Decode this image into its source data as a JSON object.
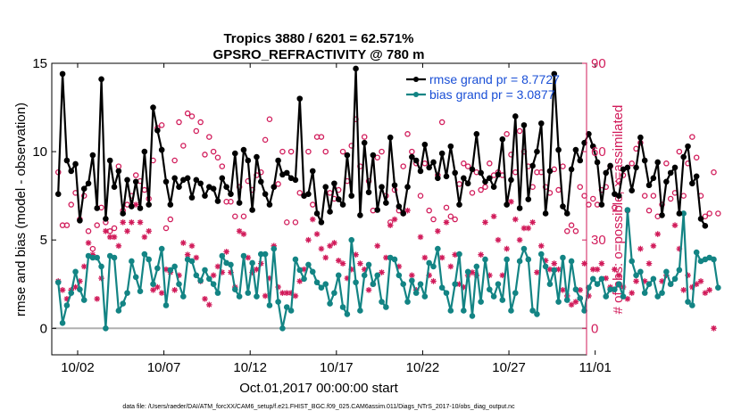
{
  "chart_data": {
    "type": "line",
    "title": "Tropics 3880 / 6201 = 62.571%",
    "subtitle": "GPSRO_REFRACTIVITY @ 780 m",
    "xlabel": "Oct.01,2017 00:00:00 start",
    "ylabel_left": "rmse and bias (model - observation)",
    "ylabel_right": "# of obs: o=possible; ×=assimilated",
    "footer": "data file: /Users/raeder/DAI/ATM_forcXX/CAM6_setup/f.e21.FHIST_BGC.f09_025.CAM6assim.011/Diags_NTrS_2017-10/obs_diag_output.nc",
    "xlim": [
      0.5,
      31.5
    ],
    "ylim_left": [
      -1.5,
      15
    ],
    "ylim_right": [
      -9,
      90
    ],
    "x_ticks": [
      2,
      7,
      12,
      17,
      22,
      27,
      32
    ],
    "x_tick_labels": [
      "10/02",
      "10/07",
      "10/12",
      "10/17",
      "10/22",
      "10/27",
      "11/01"
    ],
    "y_ticks_left": [
      0,
      5,
      10,
      15
    ],
    "y_ticks_right": [
      0,
      30,
      60,
      90
    ],
    "colors": {
      "rmse": "#000000",
      "bias": "#138484",
      "obs": "#d11b5a",
      "zero": "#b0b0b0",
      "legend_text": "#1a4fd6"
    },
    "legend": [
      {
        "name": "rmse grand pr = 8.7727",
        "key": "rmse"
      },
      {
        "name": "bias grand pr = 3.0877",
        "key": "bias"
      }
    ],
    "x_start": 0.875,
    "x_step": 0.25,
    "series": [
      {
        "name": "rmse",
        "axis": "left",
        "values": [
          7.6,
          14.4,
          9.5,
          8.9,
          9.3,
          6.1,
          7.9,
          8.2,
          9.8,
          6.8,
          14.1,
          6.2,
          9.5,
          8.0,
          8.9,
          6.5,
          8.4,
          6.9,
          8.3,
          6.8,
          10.0,
          7.0,
          12.5,
          11.2,
          10.1,
          8.3,
          7.0,
          8.5,
          8.0,
          8.4,
          8.5,
          7.4,
          8.4,
          8.2,
          7.5,
          8.0,
          7.9,
          7.2,
          8.5,
          8.0,
          7.6,
          9.9,
          7.1,
          10.1,
          9.5,
          6.7,
          9.7,
          8.3,
          7.6,
          7.0,
          8.0,
          9.5,
          8.7,
          8.8,
          8.5,
          8.4,
          13.0,
          7.5,
          7.6,
          8.9,
          6.5,
          6.0,
          8.0,
          6.6,
          8.2,
          7.3,
          7.0,
          9.8,
          7.5,
          14.7,
          6.4,
          10.5,
          7.7,
          9.8,
          6.7,
          8.0,
          7.1,
          10.8,
          8.1,
          6.9,
          6.5,
          8.0,
          9.7,
          9.5,
          8.9,
          10.4,
          9.1,
          9.4,
          8.5,
          9.9,
          8.6,
          10.3,
          8.8,
          7.0,
          8.5,
          8.2,
          9.0,
          11.0,
          8.8,
          8.3,
          8.5,
          8.0,
          8.7,
          10.7,
          7.0,
          8.4,
          12.0,
          6.8,
          11.5,
          7.3,
          9.2,
          10.0,
          11.6,
          6.5,
          8.9,
          14.4,
          10.1,
          6.9,
          6.5,
          9.0,
          10.1,
          9.5,
          10.5,
          11.0,
          10.3,
          9.4,
          7.0,
          8.8,
          9.2,
          7.6,
          7.5,
          9.0,
          9.1,
          7.8,
          9.1,
          10.8,
          9.5,
          8.1,
          8.5,
          9.4,
          6.4,
          8.3,
          8.8,
          9.1,
          6.5,
          9.7,
          10.3,
          8.2,
          8.6,
          6.2,
          5.8
        ]
      },
      {
        "name": "bias",
        "axis": "left",
        "values": [
          2.6,
          0.3,
          1.3,
          2.0,
          3.2,
          2.2,
          1.6,
          4.1,
          4.0,
          4.0,
          3.5,
          0.0,
          4.1,
          4.0,
          1.0,
          1.4,
          2.0,
          3.8,
          2.9,
          2.1,
          4.2,
          3.9,
          2.5,
          3.4,
          4.5,
          1.3,
          3.3,
          3.5,
          2.5,
          1.8,
          3.9,
          3.8,
          3.0,
          2.7,
          3.3,
          2.8,
          2.5,
          2.0,
          4.1,
          3.7,
          3.6,
          2.2,
          1.8,
          4.1,
          2.0,
          3.7,
          1.8,
          4.2,
          4.2,
          1.3,
          4.5,
          1.5,
          0.0,
          1.2,
          1.0,
          3.9,
          3.3,
          2.8,
          3.6,
          3.2,
          2.6,
          2.3,
          2.5,
          1.4,
          2.0,
          3.0,
          1.2,
          0.8,
          5.0,
          2.6,
          1.0,
          3.0,
          3.6,
          2.5,
          3.0,
          1.5,
          1.2,
          4.0,
          3.9,
          3.0,
          2.5,
          1.5,
          2.7,
          2.0,
          2.5,
          1.8,
          3.7,
          3.5,
          4.5,
          2.3,
          2.0,
          1.0,
          2.5,
          4.2,
          1.0,
          3.2,
          0.7,
          3.5,
          1.5,
          3.9,
          2.2,
          1.8,
          2.5,
          1.6,
          3.9,
          1.0,
          2.0,
          3.8,
          4.5,
          3.9,
          1.0,
          0.8,
          4.2,
          3.5,
          2.5,
          3.3,
          1.5,
          4.0,
          1.6,
          3.8,
          2.2,
          1.7,
          1.0,
          2.3,
          2.8,
          2.5,
          2.8,
          1.8,
          2.2,
          2.2,
          2.5,
          1.8,
          6.7,
          3.8,
          3.0,
          3.2,
          2.0,
          2.5,
          2.8,
          1.8,
          2.0,
          3.2,
          2.5,
          2.8,
          3.3,
          6.5,
          1.5,
          1.3,
          4.3,
          3.8,
          3.9,
          4.0,
          3.9,
          2.3
        ]
      },
      {
        "name": "obs_possible",
        "axis": "right",
        "values": [
          53,
          35,
          35,
          42,
          46,
          37,
          45,
          33,
          27,
          35,
          41,
          36,
          33,
          34,
          55,
          40,
          42,
          45,
          52,
          50,
          47,
          44,
          57,
          68,
          69,
          34,
          37,
          57,
          70,
          62,
          73,
          72,
          67,
          70,
          59,
          65,
          60,
          58,
          55,
          43,
          43,
          38,
          48,
          38,
          50,
          47,
          52,
          53,
          64,
          71,
          48,
          49,
          60,
          36,
          60,
          36,
          46,
          45,
          60,
          42,
          65,
          65,
          60,
          46,
          44,
          47,
          60,
          50,
          62,
          71,
          55,
          65,
          50,
          40,
          58,
          60,
          45,
          36,
          47,
          40,
          55,
          66,
          60,
          56,
          45,
          56,
          40,
          37,
          52,
          70,
          41,
          38,
          37,
          49,
          56,
          55,
          46,
          53,
          47,
          48,
          56,
          52,
          53,
          52,
          66,
          59,
          53,
          67,
          60,
          55,
          48,
          53,
          53,
          48,
          46,
          54,
          47,
          55,
          33,
          35,
          33,
          48,
          45,
          42,
          44,
          42,
          47,
          48,
          55,
          41,
          50,
          52,
          40,
          56,
          61,
          63,
          45,
          40,
          45,
          38,
          42,
          56,
          44,
          46,
          60,
          45,
          56,
          65,
          58,
          45,
          38,
          39,
          53,
          39
        ]
      },
      {
        "name": "obs_assimilated",
        "axis": "right",
        "values": [
          16,
          13,
          10,
          13,
          14,
          16,
          21,
          29,
          25,
          10,
          17,
          33,
          31,
          31,
          28,
          36,
          33,
          36,
          42,
          36,
          31,
          33,
          13,
          14,
          12,
          20,
          19,
          13,
          18,
          29,
          25,
          28,
          24,
          16,
          10,
          8,
          18,
          21,
          19,
          26,
          19,
          14,
          33,
          32,
          24,
          19,
          20,
          22,
          11,
          17,
          28,
          14,
          12,
          12,
          12,
          11,
          16,
          20,
          30,
          37,
          32,
          27,
          24,
          28,
          29,
          23,
          22,
          17,
          20,
          25,
          22,
          20,
          13,
          15,
          28,
          19,
          24,
          35,
          37,
          21,
          39,
          40,
          18,
          13,
          31,
          24,
          18,
          16,
          33,
          24,
          36,
          21,
          25,
          15,
          14,
          18,
          19,
          18,
          25,
          36,
          18,
          38,
          30,
          18,
          27,
          43,
          37,
          30,
          34,
          34,
          36,
          19,
          28,
          23,
          20,
          22,
          20,
          13,
          11,
          8,
          9,
          13,
          22,
          11,
          20,
          20,
          22,
          17,
          14,
          20,
          18,
          14,
          10,
          12,
          16,
          27,
          16,
          22,
          28,
          32,
          16,
          18,
          15,
          35,
          27,
          13,
          18,
          14,
          15,
          16,
          12,
          13,
          0
        ]
      }
    ]
  }
}
